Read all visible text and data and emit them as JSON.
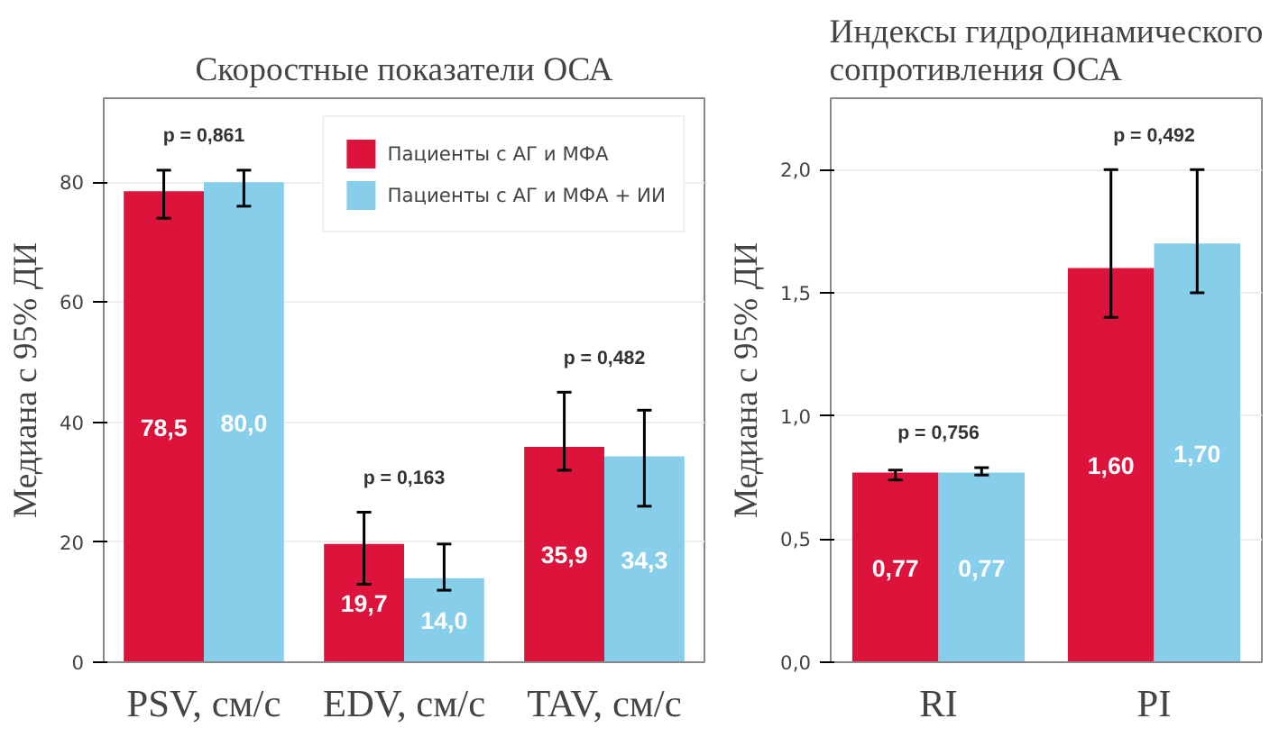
{
  "chart_data": [
    {
      "type": "bar",
      "title": "Скоростные показатели ОСА",
      "ylabel": "Медиана с 95% ДИ",
      "categories": [
        "PSV, см/с",
        "EDV, см/с",
        "TAV, см/с"
      ],
      "series": [
        {
          "name": "Пациенты с АГ и МФА",
          "color": "#dc143c",
          "values": [
            78.5,
            19.7,
            35.9
          ],
          "errors": [
            [
              74,
              82
            ],
            [
              13,
              25
            ],
            [
              32,
              45
            ]
          ],
          "value_labels": [
            "78,5",
            "19,7",
            "35,9"
          ]
        },
        {
          "name": "Пациенты с АГ и МФА + ИИ",
          "color": "#87ceeb",
          "values": [
            80.0,
            14.0,
            34.3
          ],
          "errors": [
            [
              76,
              82
            ],
            [
              12,
              19.7
            ],
            [
              26,
              42
            ]
          ],
          "value_labels": [
            "80,0",
            "14,0",
            "34,3"
          ]
        }
      ],
      "ylim": [
        0,
        94
      ],
      "yticks": [
        0,
        20,
        40,
        60,
        80
      ],
      "grid": "y",
      "legend": "top right",
      "annotations": [
        "p = 0,861",
        "p = 0,163",
        "p = 0,482"
      ]
    },
    {
      "type": "bar",
      "title": "Индексы гидродинамического\nсопротивления ОСА",
      "ylabel": "Медиана с 95% ДИ",
      "categories": [
        "RI",
        "PI"
      ],
      "series": [
        {
          "color": "#dc143c",
          "values": [
            0.77,
            1.6
          ],
          "errors": [
            [
              0.74,
              0.78
            ],
            [
              1.4,
              2.0
            ]
          ],
          "value_labels": [
            "0,77",
            "1,60"
          ]
        },
        {
          "color": "#87ceeb",
          "values": [
            0.77,
            1.7
          ],
          "errors": [
            [
              0.76,
              0.79
            ],
            [
              1.5,
              2.0
            ]
          ],
          "value_labels": [
            "0,77",
            "1,70"
          ]
        }
      ],
      "ylim": [
        0,
        2.29
      ],
      "yticks": [
        {
          "value": 0,
          "label": "0,0"
        },
        {
          "value": 0.5,
          "label": "0,5"
        },
        {
          "value": 1.0,
          "label": "1,0"
        },
        {
          "value": 1.5,
          "label": "1,5"
        },
        {
          "value": 2.0,
          "label": "2,0"
        }
      ],
      "grid": "y",
      "legend": false,
      "annotations": [
        "p = 0,756",
        "p = 0,492"
      ]
    }
  ]
}
